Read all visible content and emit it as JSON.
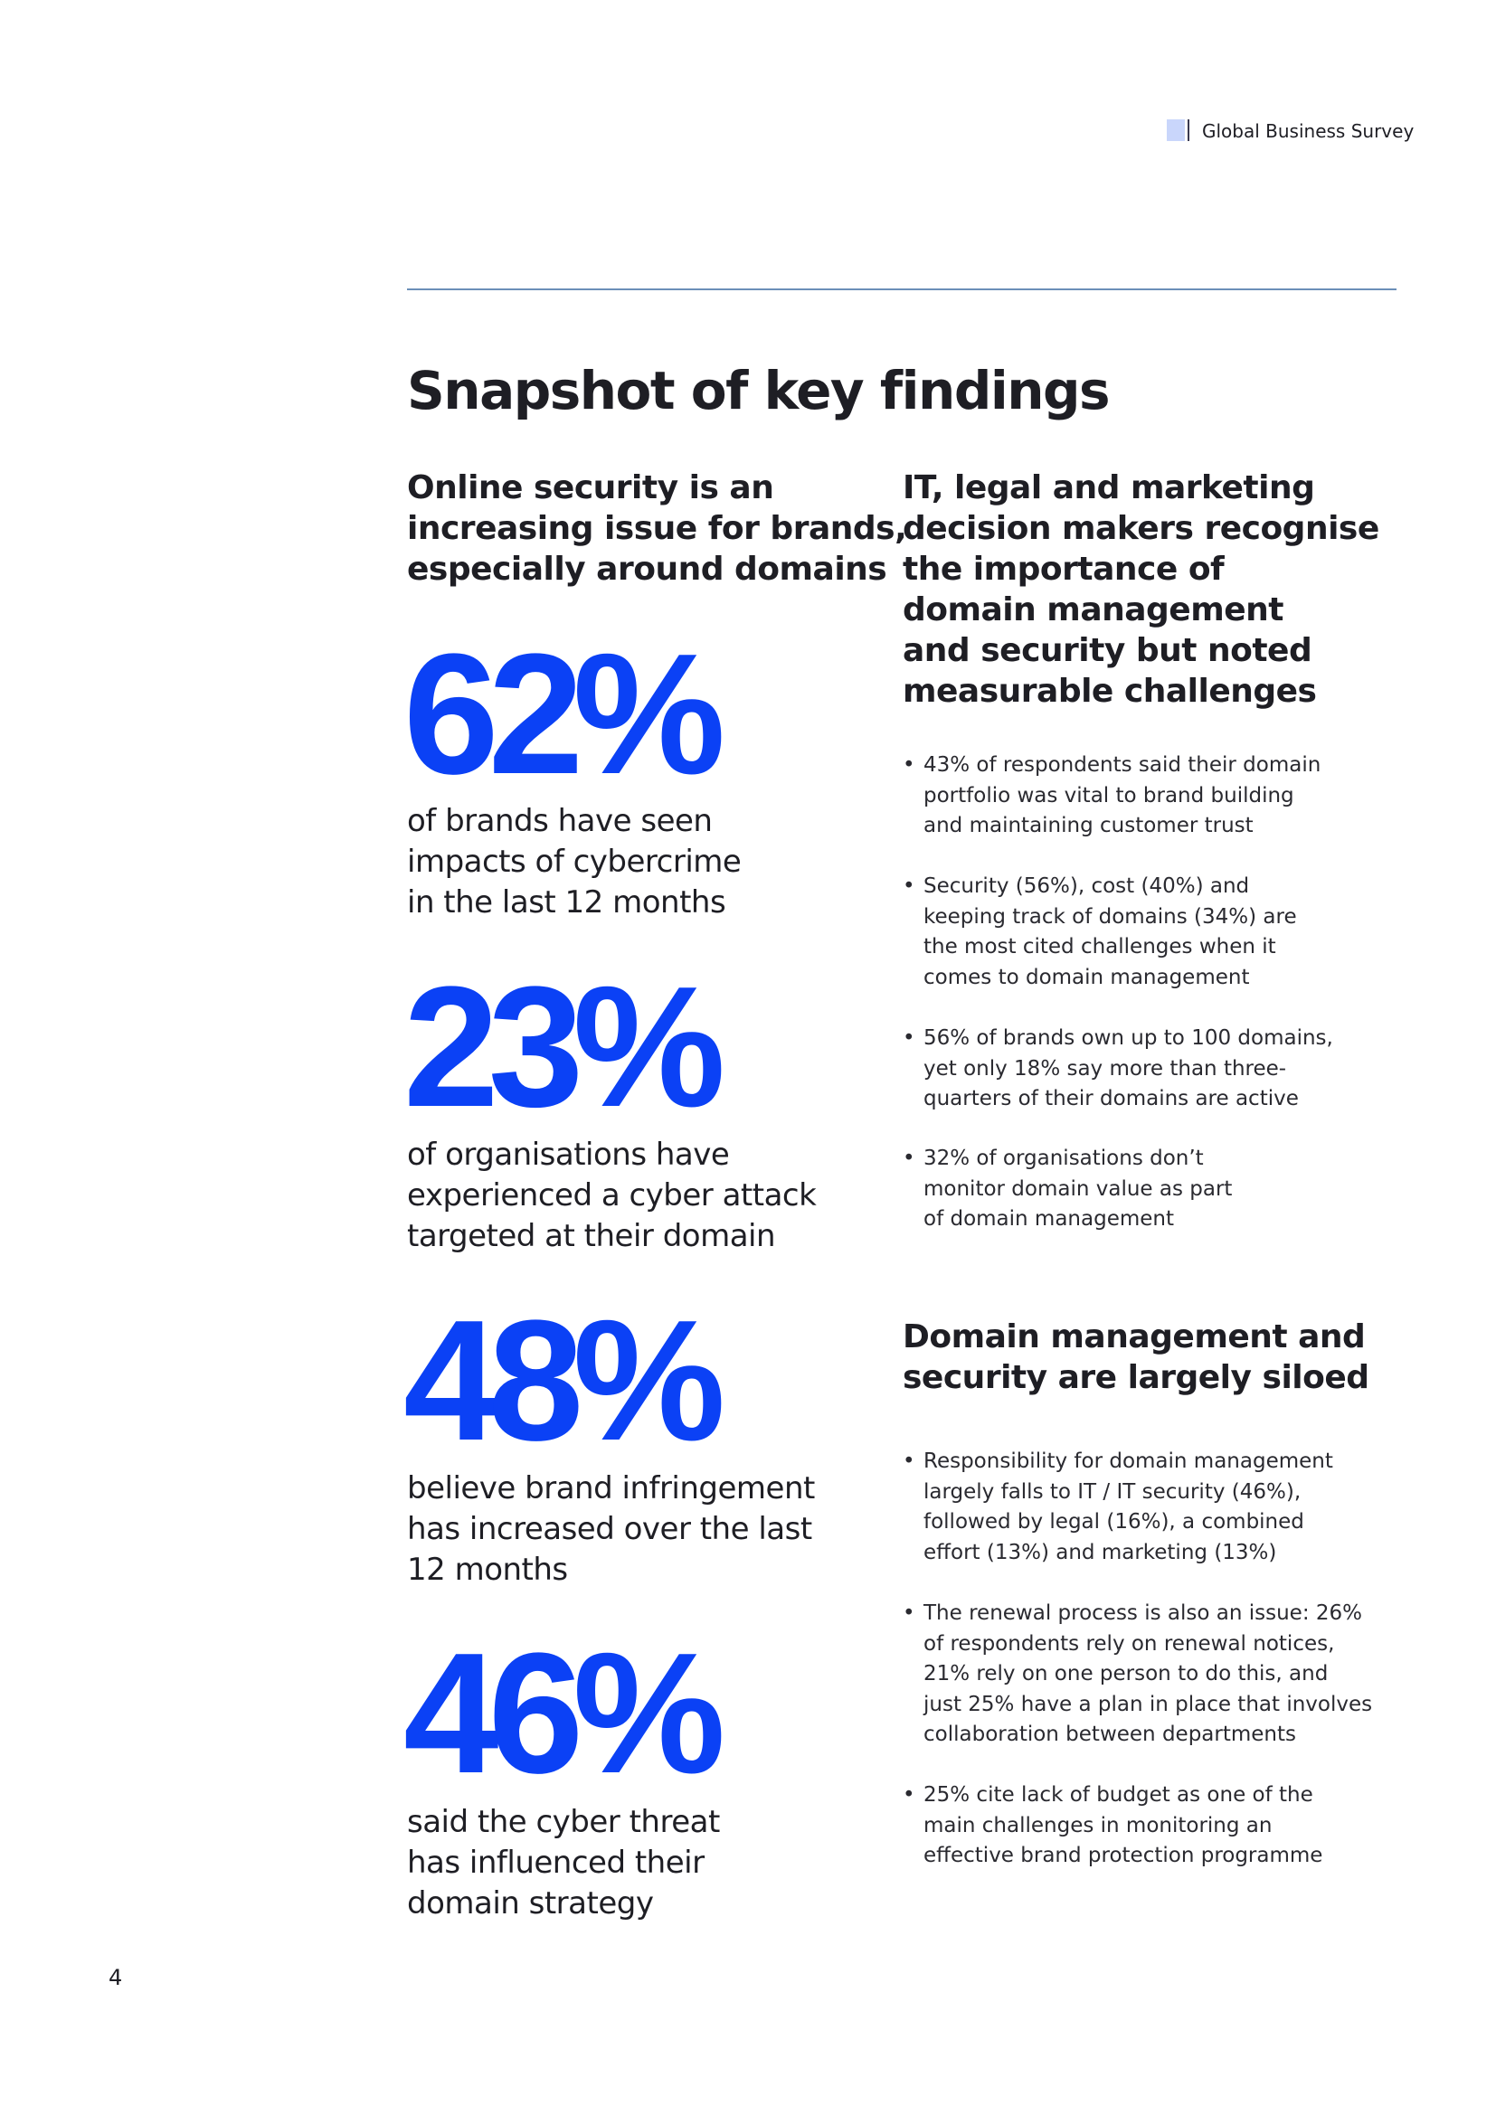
{
  "header": {
    "title": "Global Business Survey"
  },
  "page_title": "Snapshot of key findings",
  "left": {
    "heading": [
      "Online security is an",
      "increasing issue for brands,",
      "especially around domains"
    ],
    "stats": [
      {
        "value": "62%",
        "caption": [
          "of brands have seen",
          "impacts of cybercrime",
          "in the last 12 months"
        ]
      },
      {
        "value": "23%",
        "caption": [
          "of organisations have",
          "experienced a cyber attack",
          "targeted at their domain"
        ]
      },
      {
        "value": "48%",
        "caption": [
          "believe brand infringement",
          "has increased over the last",
          "12 months"
        ]
      },
      {
        "value": "46%",
        "caption": [
          "said the cyber threat",
          "has influenced their",
          "domain strategy"
        ]
      }
    ]
  },
  "right": {
    "sections": [
      {
        "heading": [
          "IT, legal and marketing",
          "decision makers recognise",
          "the importance of",
          "domain management",
          "and security but noted",
          "measurable challenges"
        ],
        "bullets": [
          [
            "43% of respondents said their domain",
            "portfolio was vital to brand building",
            "and maintaining customer trust"
          ],
          [
            "Security (56%), cost (40%) and",
            "keeping track of domains (34%) are",
            "the most cited challenges when it",
            "comes to domain management"
          ],
          [
            "56% of brands own up to 100 domains,",
            "yet only 18% say more than three-",
            "quarters of their domains are active"
          ],
          [
            "32% of organisations don’t",
            "monitor domain value as part",
            "of domain management"
          ]
        ]
      },
      {
        "heading": [
          "Domain management and",
          "security are largely siloed"
        ],
        "bullets": [
          [
            "Responsibility for domain management",
            "largely falls to IT / IT security (46%),",
            "followed by legal (16%), a combined",
            "effort (13%) and marketing (13%)"
          ],
          [
            "The renewal process is also an issue: 26%",
            "of respondents rely on renewal notices,",
            "21% rely on one person to do this, and",
            "just 25% have a plan in place that involves",
            "collaboration between departments"
          ],
          [
            "25% cite lack of budget as one of the",
            "main challenges in monitoring an",
            "effective brand protection programme"
          ]
        ]
      }
    ]
  },
  "page_number": "4"
}
